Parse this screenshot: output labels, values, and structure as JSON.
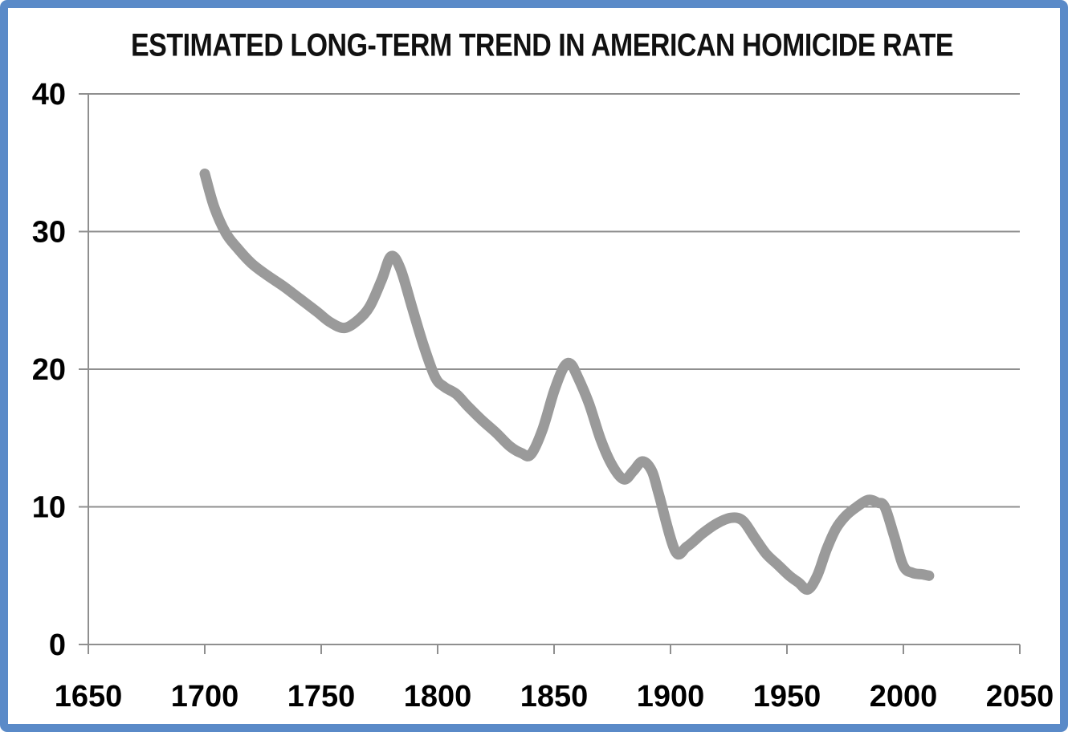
{
  "window": {
    "background_color": "#ffffff",
    "border_color": "#5a8ac8"
  },
  "chart_data": {
    "type": "line",
    "title": "ESTIMATED LONG-TERM TREND IN AMERICAN HOMICIDE RATE",
    "xlabel": "",
    "ylabel": "",
    "xlim": [
      1650,
      2050
    ],
    "ylim": [
      0,
      40
    ],
    "x_ticks": [
      "1650",
      "1700",
      "1750",
      "1800",
      "1850",
      "1900",
      "1950",
      "2000",
      "2050"
    ],
    "x_tick_values": [
      1650,
      1700,
      1750,
      1800,
      1850,
      1900,
      1950,
      2000,
      2050
    ],
    "y_ticks": [
      "0",
      "10",
      "20",
      "30",
      "40"
    ],
    "y_tick_values": [
      0,
      10,
      20,
      30,
      40
    ],
    "grid": "horizontal-only",
    "legend": "none",
    "line_color": "#9a9a9a",
    "line_width": 13,
    "axis_color": "#8f8f8f",
    "text_color": "#000000",
    "series": [
      {
        "points": [
          [
            1700,
            34.2
          ],
          [
            1704,
            31.8
          ],
          [
            1709,
            29.9
          ],
          [
            1714,
            28.8
          ],
          [
            1720,
            27.7
          ],
          [
            1727,
            26.8
          ],
          [
            1734,
            26.0
          ],
          [
            1741,
            25.1
          ],
          [
            1748,
            24.2
          ],
          [
            1754,
            23.4
          ],
          [
            1760,
            23.0
          ],
          [
            1766,
            23.6
          ],
          [
            1771,
            24.6
          ],
          [
            1776,
            26.5
          ],
          [
            1780,
            28.2
          ],
          [
            1784,
            27.3
          ],
          [
            1789,
            24.5
          ],
          [
            1794,
            21.7
          ],
          [
            1799,
            19.4
          ],
          [
            1803,
            18.7
          ],
          [
            1808,
            18.2
          ],
          [
            1813,
            17.3
          ],
          [
            1819,
            16.3
          ],
          [
            1825,
            15.4
          ],
          [
            1831,
            14.4
          ],
          [
            1836,
            13.9
          ],
          [
            1840,
            13.8
          ],
          [
            1845,
            15.6
          ],
          [
            1850,
            18.4
          ],
          [
            1854,
            20.1
          ],
          [
            1857,
            20.4
          ],
          [
            1860,
            19.5
          ],
          [
            1865,
            17.5
          ],
          [
            1870,
            14.9
          ],
          [
            1875,
            13.0
          ],
          [
            1880,
            12.0
          ],
          [
            1884,
            12.6
          ],
          [
            1888,
            13.3
          ],
          [
            1892,
            12.6
          ],
          [
            1895,
            10.9
          ],
          [
            1902,
            6.8
          ],
          [
            1907,
            7.1
          ],
          [
            1914,
            8.1
          ],
          [
            1920,
            8.8
          ],
          [
            1926,
            9.2
          ],
          [
            1931,
            9.0
          ],
          [
            1936,
            7.8
          ],
          [
            1941,
            6.6
          ],
          [
            1946,
            5.8
          ],
          [
            1951,
            5.0
          ],
          [
            1955,
            4.5
          ],
          [
            1959,
            4.0
          ],
          [
            1963,
            5.0
          ],
          [
            1967,
            6.9
          ],
          [
            1971,
            8.4
          ],
          [
            1975,
            9.3
          ],
          [
            1980,
            10.0
          ],
          [
            1985,
            10.5
          ],
          [
            1989,
            10.3
          ],
          [
            1992,
            10.0
          ],
          [
            1996,
            7.9
          ],
          [
            2000,
            5.7
          ],
          [
            2004,
            5.2
          ],
          [
            2008,
            5.1
          ],
          [
            2011,
            5.0
          ]
        ]
      }
    ]
  }
}
